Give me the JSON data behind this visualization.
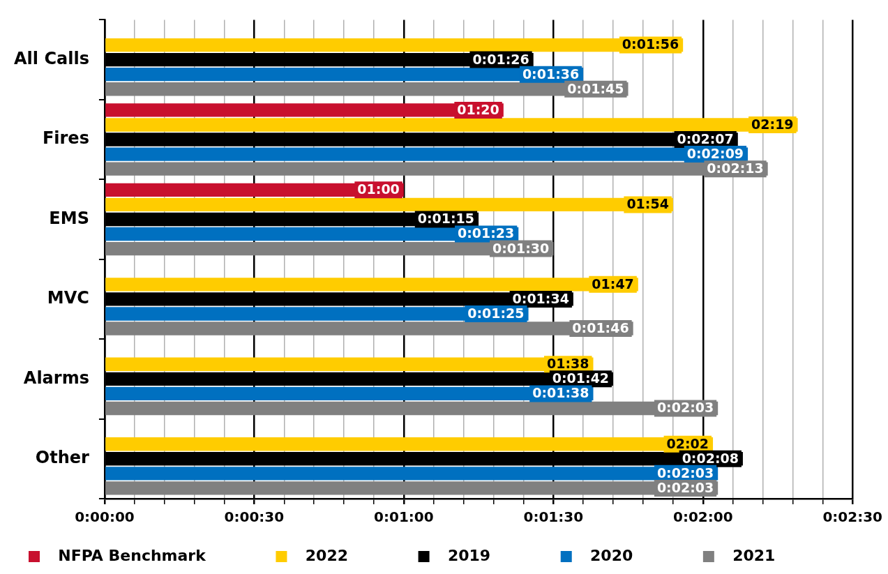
{
  "chart_data": {
    "type": "bar",
    "orientation": "horizontal",
    "categories": [
      "All Calls",
      "Fires",
      "EMS",
      "MVC",
      "Alarms",
      "Other"
    ],
    "series": [
      {
        "name": "NFPA Benchmark",
        "color": "#c8102e",
        "values": [
          null,
          80,
          60,
          null,
          null,
          null
        ],
        "value_labels": [
          null,
          "01:20",
          "01:00",
          null,
          null,
          null
        ]
      },
      {
        "name": "2022",
        "color": "#ffcc00",
        "values": [
          116,
          139,
          114,
          107,
          98,
          122
        ],
        "value_labels": [
          "0:01:56",
          "02:19",
          "01:54",
          "01:47",
          "01:38",
          "02:02"
        ]
      },
      {
        "name": "2019",
        "color": "#000000",
        "values": [
          86,
          127,
          75,
          94,
          102,
          128
        ],
        "value_labels": [
          "0:01:26",
          "0:02:07",
          "0:01:15",
          "0:01:34",
          "0:01:42",
          "0:02:08"
        ]
      },
      {
        "name": "2020",
        "color": "#0070c0",
        "values": [
          96,
          129,
          83,
          85,
          98,
          123
        ],
        "value_labels": [
          "0:01:36",
          "0:02:09",
          "0:01:23",
          "0:01:25",
          "0:01:38",
          "0:02:03"
        ]
      },
      {
        "name": "2021",
        "color": "#808080",
        "values": [
          105,
          133,
          90,
          106,
          123,
          123
        ],
        "value_labels": [
          "0:01:45",
          "0:02:13",
          "0:01:30",
          "0:01:46",
          "0:02:03",
          "0:02:03"
        ]
      }
    ],
    "xlim": [
      0,
      150
    ],
    "xticks": [
      {
        "value": 0,
        "label": "0:00:00"
      },
      {
        "value": 6,
        "label": null
      },
      {
        "value": 12,
        "label": null
      },
      {
        "value": 18,
        "label": null
      },
      {
        "value": 24,
        "label": null
      },
      {
        "value": 30,
        "label": "0:00:30"
      },
      {
        "value": 36,
        "label": null
      },
      {
        "value": 42,
        "label": null
      },
      {
        "value": 48,
        "label": null
      },
      {
        "value": 54,
        "label": null
      },
      {
        "value": 60,
        "label": "0:01:00"
      },
      {
        "value": 66,
        "label": null
      },
      {
        "value": 72,
        "label": null
      },
      {
        "value": 78,
        "label": null
      },
      {
        "value": 84,
        "label": null
      },
      {
        "value": 90,
        "label": "0:01:30"
      },
      {
        "value": 96,
        "label": null
      },
      {
        "value": 102,
        "label": null
      },
      {
        "value": 108,
        "label": null
      },
      {
        "value": 114,
        "label": null
      },
      {
        "value": 120,
        "label": "0:02:00"
      },
      {
        "value": 126,
        "label": null
      },
      {
        "value": 132,
        "label": null
      },
      {
        "value": 138,
        "label": null
      },
      {
        "value": 144,
        "label": null
      },
      {
        "value": 150,
        "label": "0:02:30"
      }
    ],
    "grid": "x",
    "legend": "bottom"
  }
}
